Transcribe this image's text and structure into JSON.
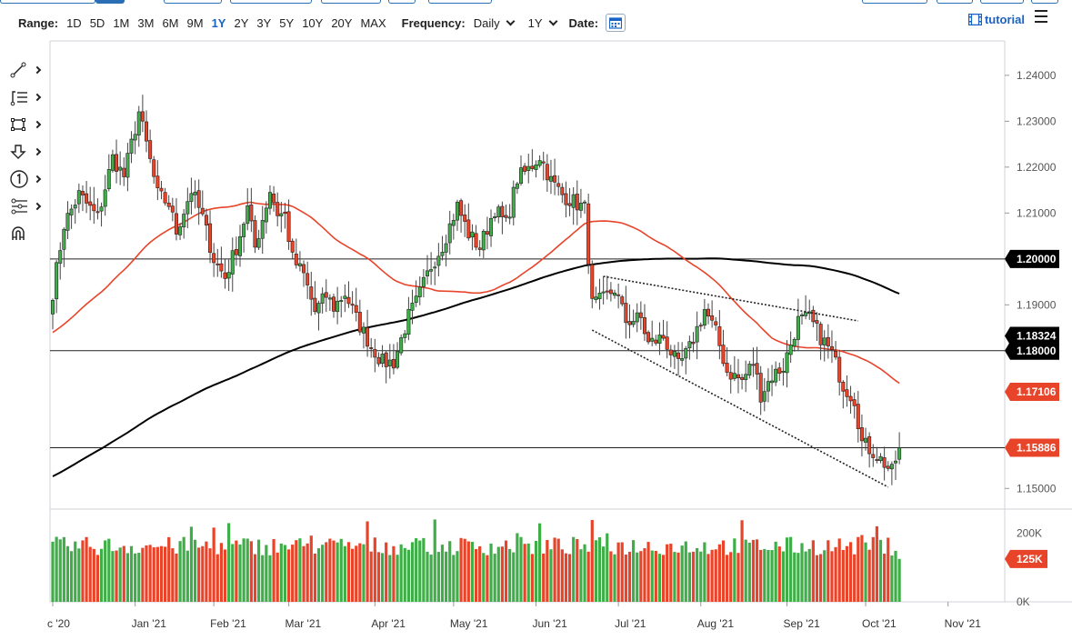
{
  "toolbar": {
    "range_label": "Range:",
    "ranges": [
      "1D",
      "5D",
      "1M",
      "3M",
      "6M",
      "9M",
      "1Y",
      "2Y",
      "3Y",
      "5Y",
      "10Y",
      "20Y",
      "MAX"
    ],
    "active_range": "1Y",
    "frequency_label": "Frequency:",
    "frequency_value": "Daily",
    "period_value": "1Y",
    "date_label": "Date:",
    "tutorial_label": "tutorial"
  },
  "sidebar_icons": [
    "line-draw-icon",
    "fibonacci-icon",
    "rectangle-icon",
    "arrow-down-icon",
    "annotation-number-icon",
    "pattern-icon",
    "magnet-icon"
  ],
  "chart_data": {
    "type": "candlestick",
    "price_axis": {
      "ticks": [
        "1.24000",
        "1.23000",
        "1.22000",
        "1.21000",
        "1.19000",
        "1.15000"
      ],
      "tick_values": [
        1.24,
        1.23,
        1.22,
        1.21,
        1.19,
        1.15
      ],
      "ylim": [
        1.1455,
        1.2475
      ]
    },
    "price_labels": [
      {
        "text": "1.20000",
        "value": 1.2,
        "kind": "horizontal-line",
        "color": "#000000"
      },
      {
        "text": "1.18324",
        "value": 1.18324,
        "kind": "sma-200",
        "color": "#000000"
      },
      {
        "text": "1.18000",
        "value": 1.18,
        "kind": "horizontal-line",
        "color": "#000000"
      },
      {
        "text": "1.17106",
        "value": 1.17106,
        "kind": "sma-50",
        "color": "#e8442a"
      },
      {
        "text": "1.15886",
        "value": 1.15886,
        "kind": "last-price",
        "color": "#e8442a"
      }
    ],
    "volume_axis": {
      "ticks": [
        "200K",
        "0K"
      ],
      "tick_values": [
        200000,
        0
      ],
      "ylim": [
        0,
        265000
      ],
      "last_label": "125K",
      "last_value": 125000
    },
    "time_axis": {
      "labels": [
        "c '20",
        "Jan '21",
        "Feb '21",
        "Mar '21",
        "Apr '21",
        "May '21",
        "Jun '21",
        "Jul '21",
        "Aug '21",
        "Sep '21",
        "Oct '21",
        "Nov '21"
      ],
      "day_index": [
        0,
        22,
        43,
        63,
        86,
        107,
        129,
        151,
        173,
        196,
        217,
        239
      ]
    },
    "horizontal_lines": [
      1.2,
      1.18,
      1.15886
    ],
    "trendlines": [
      {
        "from": [
          144,
          1.1845
        ],
        "to": [
          223,
          1.1503
        ]
      },
      {
        "from": [
          147,
          1.1962
        ],
        "to": [
          215,
          1.1865
        ]
      }
    ],
    "anchors": [
      [
        0,
        1.1928
      ],
      [
        3,
        1.2075
      ],
      [
        7,
        1.214
      ],
      [
        12,
        1.209
      ],
      [
        16,
        1.222
      ],
      [
        19,
        1.218
      ],
      [
        23,
        1.232
      ],
      [
        25,
        1.225
      ],
      [
        28,
        1.214
      ],
      [
        31,
        1.212
      ],
      [
        33,
        1.206
      ],
      [
        37,
        1.215
      ],
      [
        40,
        1.209
      ],
      [
        43,
        1.2
      ],
      [
        46,
        1.196
      ],
      [
        49,
        1.2025
      ],
      [
        52,
        1.211
      ],
      [
        54,
        1.2025
      ],
      [
        58,
        1.215
      ],
      [
        60,
        1.21
      ],
      [
        62,
        1.2095
      ],
      [
        64,
        1.2
      ],
      [
        67,
        1.1965
      ],
      [
        70,
        1.1885
      ],
      [
        73,
        1.192
      ],
      [
        75,
        1.1895
      ],
      [
        78,
        1.1925
      ],
      [
        81,
        1.187
      ],
      [
        85,
        1.181
      ],
      [
        88,
        1.1775
      ],
      [
        91,
        1.1775
      ],
      [
        95,
        1.1875
      ],
      [
        97,
        1.1905
      ],
      [
        101,
        1.1985
      ],
      [
        104,
        1.203
      ],
      [
        108,
        1.2115
      ],
      [
        111,
        1.2055
      ],
      [
        114,
        1.2025
      ],
      [
        118,
        1.211
      ],
      [
        121,
        1.2075
      ],
      [
        124,
        1.2175
      ],
      [
        127,
        1.2195
      ],
      [
        130,
        1.2225
      ],
      [
        133,
        1.217
      ],
      [
        136,
        1.214
      ],
      [
        140,
        1.212
      ],
      [
        142,
        1.211
      ],
      [
        144,
        1.19
      ],
      [
        147,
        1.1912
      ],
      [
        150,
        1.1935
      ],
      [
        153,
        1.1865
      ],
      [
        157,
        1.187
      ],
      [
        159,
        1.1815
      ],
      [
        163,
        1.183
      ],
      [
        167,
        1.1765
      ],
      [
        170,
        1.1805
      ],
      [
        174,
        1.189
      ],
      [
        177,
        1.184
      ],
      [
        180,
        1.1755
      ],
      [
        184,
        1.1735
      ],
      [
        187,
        1.1775
      ],
      [
        189,
        1.1705
      ],
      [
        192,
        1.1745
      ],
      [
        195,
        1.1765
      ],
      [
        199,
        1.1865
      ],
      [
        202,
        1.187
      ],
      [
        205,
        1.183
      ],
      [
        208,
        1.1795
      ],
      [
        211,
        1.1725
      ],
      [
        214,
        1.1695
      ],
      [
        216,
        1.16
      ],
      [
        219,
        1.158
      ],
      [
        222,
        1.1555
      ],
      [
        224,
        1.1535
      ],
      [
        226,
        1.159
      ]
    ],
    "volume_up_color": "#3fae49",
    "volume_down_color": "#e8442a",
    "candle_up_color": "#3fae49",
    "candle_down_color": "#e8442a",
    "sma50_color": "#e8442a",
    "sma200_color": "#000000"
  }
}
